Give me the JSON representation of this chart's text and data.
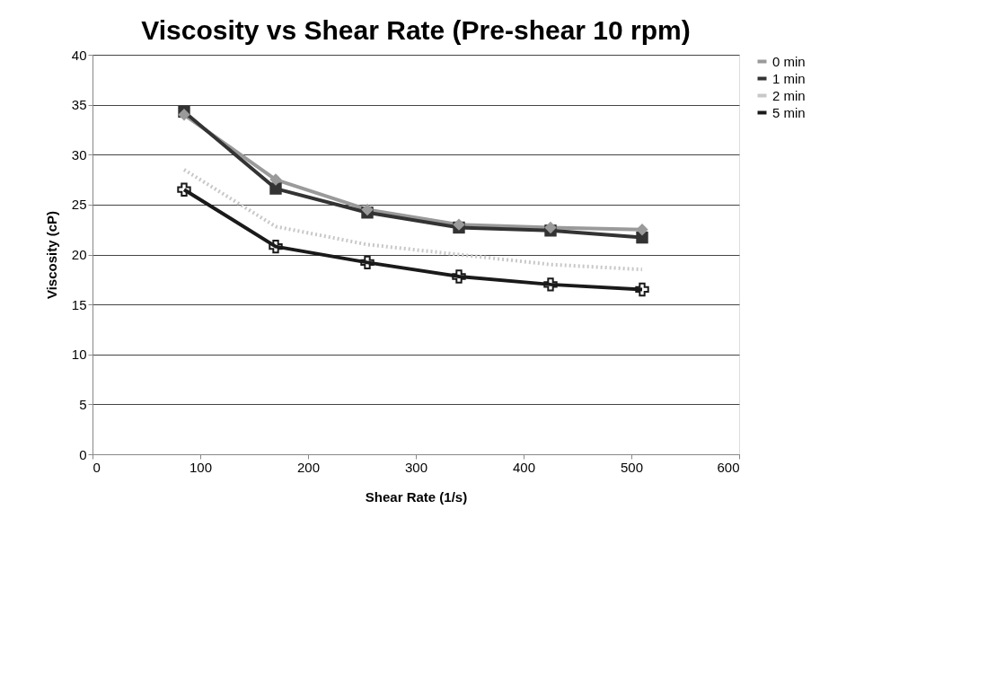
{
  "chart_data": {
    "type": "line",
    "title": "Viscosity vs Shear Rate (Pre-shear 10 rpm)",
    "xlabel": "Shear Rate (1/s)",
    "ylabel": "Viscosity (cP)",
    "x": [
      85,
      170,
      255,
      340,
      425,
      510
    ],
    "series": [
      {
        "name": "0 min",
        "color": "#9a9a9a",
        "marker": "diamond",
        "values": [
          34.0,
          27.5,
          24.5,
          23.0,
          22.7,
          22.5
        ]
      },
      {
        "name": "1 min",
        "color": "#333333",
        "marker": "square",
        "values": [
          34.3,
          26.6,
          24.2,
          22.7,
          22.4,
          21.7
        ]
      },
      {
        "name": "2 min",
        "color": "#c8c8c8",
        "marker": "none",
        "line_style": "dotted",
        "values": [
          28.5,
          22.8,
          21.0,
          20.0,
          19.0,
          18.5
        ]
      },
      {
        "name": "5 min",
        "color": "#1a1a1a",
        "marker": "cross",
        "values": [
          26.5,
          20.8,
          19.2,
          17.8,
          17.0,
          16.5
        ]
      }
    ],
    "xlim": [
      0,
      600
    ],
    "xticks": [
      0,
      100,
      200,
      300,
      400,
      500,
      600
    ],
    "ylim": [
      0,
      40
    ],
    "yticks": [
      0,
      5,
      10,
      15,
      20,
      25,
      30,
      35,
      40
    ],
    "grid": "y",
    "legend": "right"
  }
}
